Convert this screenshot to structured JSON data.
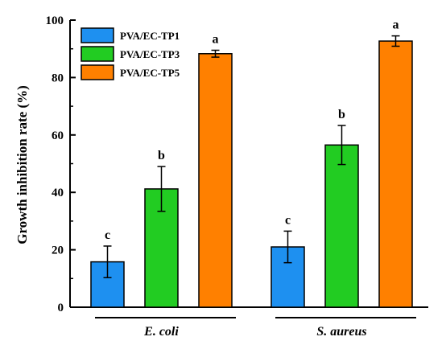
{
  "chart_data": {
    "type": "bar",
    "title": "",
    "xlabel": "",
    "ylabel": "Growth inhibition rate (%)",
    "ylim": [
      0,
      100
    ],
    "yticks": [
      0,
      20,
      40,
      60,
      80,
      100
    ],
    "grid": false,
    "legend_position": "top-left",
    "categories": [
      "E. coli",
      "S. aureus"
    ],
    "series": [
      {
        "name": "PVA/EC-TP1",
        "color": "#1E90F0",
        "values": [
          15.8,
          21.0
        ],
        "errors": [
          5.5,
          5.5
        ],
        "labels": [
          "c",
          "c"
        ]
      },
      {
        "name": "PVA/EC-TP3",
        "color": "#22CC22",
        "values": [
          41.2,
          56.5
        ],
        "errors": [
          7.8,
          6.8
        ],
        "labels": [
          "b",
          "b"
        ]
      },
      {
        "name": "PVA/EC-TP5",
        "color": "#FF8000",
        "values": [
          88.3,
          92.7
        ],
        "errors": [
          1.2,
          1.8
        ],
        "labels": [
          "a",
          "a"
        ]
      }
    ]
  }
}
